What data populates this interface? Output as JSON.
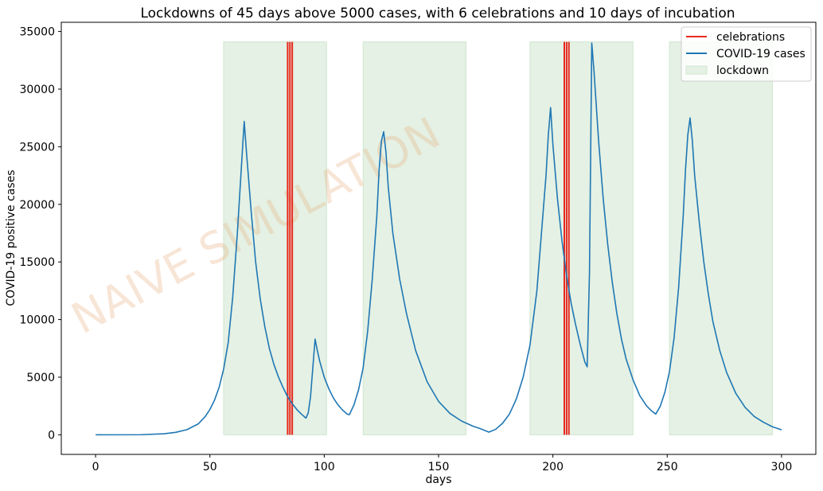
{
  "chart_data": {
    "type": "line",
    "title": "Lockdowns of 45 days above 5000 cases, with 6 celebrations and 10 days of incubation",
    "xlabel": "days",
    "ylabel": "COVID-19 positive cases",
    "xlim": [
      -15,
      315
    ],
    "ylim": [
      -1700,
      35800
    ],
    "xticks": [
      0,
      50,
      100,
      150,
      200,
      250,
      300
    ],
    "yticks": [
      0,
      5000,
      10000,
      15000,
      20000,
      25000,
      30000,
      35000
    ],
    "grid": false,
    "legend_position": "top-right",
    "watermark": "NAIVE SIMULATION",
    "colors": {
      "cases": "#1f77b4",
      "celebrations": "#e8281e",
      "lockdown_fill": "#e4f1e4",
      "lockdown_edge": "#cfe6cf",
      "watermark": "#e8b48a"
    },
    "legend": [
      {
        "label": "celebrations",
        "kind": "line",
        "color": "#e8281e"
      },
      {
        "label": "COVID-19 cases",
        "kind": "line",
        "color": "#1f77b4"
      },
      {
        "label": "lockdown",
        "kind": "patch",
        "color": "#e4f1e4"
      }
    ],
    "lockdowns": [
      {
        "start": 56,
        "end": 101
      },
      {
        "start": 117,
        "end": 162
      },
      {
        "start": 190,
        "end": 235
      },
      {
        "start": 251,
        "end": 296
      }
    ],
    "lockdown_top": 34100,
    "celebrations": [
      84,
      85,
      86,
      205,
      206,
      207
    ],
    "series": [
      {
        "name": "COVID-19 cases",
        "x": [
          0,
          20,
          30,
          35,
          40,
          45,
          48,
          50,
          52,
          54,
          56,
          58,
          60,
          62,
          64,
          65,
          66,
          68,
          70,
          72,
          74,
          76,
          78,
          80,
          82,
          84,
          86,
          88,
          90,
          92,
          93,
          94,
          95,
          96,
          97,
          98,
          100,
          102,
          104,
          106,
          108,
          110,
          111,
          113,
          115,
          117,
          119,
          121,
          123,
          124,
          125,
          126,
          127,
          128,
          130,
          133,
          136,
          140,
          145,
          150,
          155,
          160,
          165,
          168,
          172,
          175,
          178,
          181,
          184,
          187,
          190,
          193,
          195,
          197,
          198,
          199,
          200,
          202,
          204,
          206,
          208,
          210,
          212,
          214,
          215,
          216,
          217,
          218,
          220,
          222,
          224,
          226,
          228,
          230,
          232,
          235,
          238,
          241,
          243,
          245,
          247,
          249,
          251,
          253,
          255,
          257,
          258,
          259,
          260,
          261,
          262,
          264,
          266,
          268,
          270,
          273,
          276,
          280,
          284,
          288,
          292,
          296,
          300
        ],
        "values": [
          0,
          10,
          90,
          210,
          450,
          960,
          1600,
          2200,
          3000,
          4100,
          5700,
          8000,
          12000,
          17500,
          24000,
          27200,
          24500,
          19500,
          15000,
          11800,
          9400,
          7500,
          6100,
          5000,
          4100,
          3300,
          2700,
          2200,
          1800,
          1450,
          1900,
          3300,
          5800,
          8300,
          7300,
          6400,
          5000,
          4000,
          3200,
          2600,
          2150,
          1800,
          1750,
          2600,
          3900,
          5800,
          9000,
          13500,
          19000,
          23000,
          25500,
          26300,
          24500,
          21500,
          17500,
          13500,
          10500,
          7300,
          4600,
          2900,
          1850,
          1200,
          750,
          550,
          230,
          480,
          1000,
          1800,
          3100,
          5000,
          7800,
          12500,
          17500,
          22500,
          26000,
          28400,
          25200,
          20500,
          16800,
          13800,
          11400,
          9500,
          7800,
          6300,
          5900,
          14000,
          34000,
          31500,
          25500,
          20500,
          16500,
          13200,
          10500,
          8300,
          6600,
          4800,
          3400,
          2500,
          2100,
          1800,
          2500,
          3700,
          5500,
          8400,
          12800,
          19000,
          23000,
          26000,
          27500,
          25500,
          22500,
          18500,
          15000,
          12200,
          9800,
          7300,
          5400,
          3600,
          2400,
          1600,
          1100,
          700,
          430
        ]
      }
    ]
  }
}
